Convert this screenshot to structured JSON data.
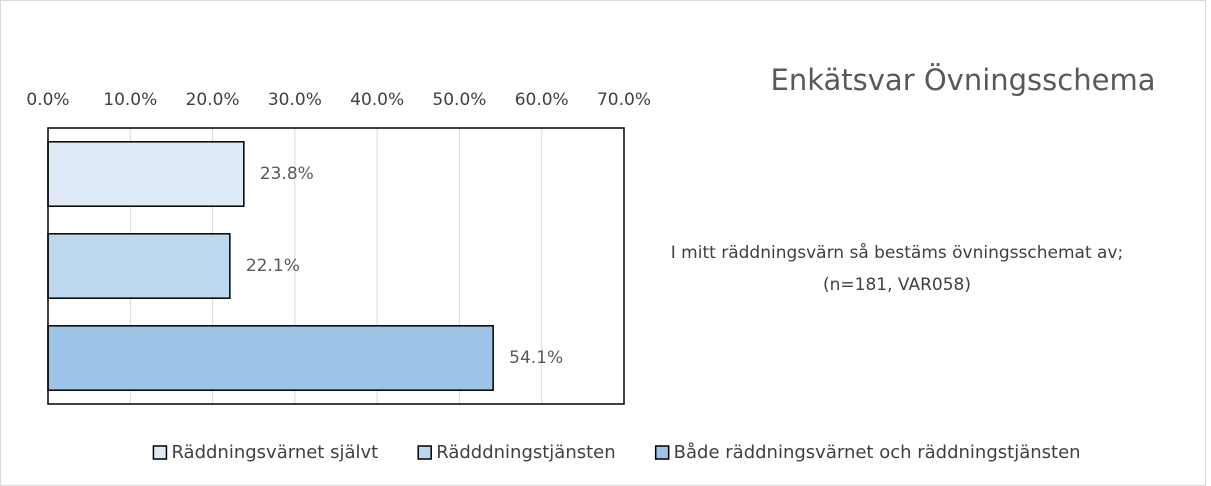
{
  "chart_data": {
    "type": "bar",
    "orientation": "horizontal",
    "title": "Enkätsvar Övningsschema",
    "annotations": [
      "I mitt räddningsvärn så bestäms övningsschemat av;",
      "(n=181, VAR058)"
    ],
    "series": [
      {
        "name": "Räddningsvärnet självt",
        "color": "#deebf7",
        "values": [
          23.8
        ],
        "value_labels": [
          "23.8%"
        ]
      },
      {
        "name": "Rädddningstjänsten",
        "color": "#bdd7ee",
        "values": [
          22.1
        ],
        "value_labels": [
          "22.1%"
        ]
      },
      {
        "name": "Både räddningsvärnet och räddningstjänsten",
        "color": "#9dc3e6",
        "values": [
          54.1
        ],
        "value_labels": [
          "54.1%"
        ]
      }
    ],
    "xlim": [
      0,
      70
    ],
    "xticks": [
      {
        "value": 0,
        "label": "0.0%"
      },
      {
        "value": 10,
        "label": "10.0%"
      },
      {
        "value": 20,
        "label": "20.0%"
      },
      {
        "value": 30,
        "label": "30.0%"
      },
      {
        "value": 40,
        "label": "40.0%"
      },
      {
        "value": 50,
        "label": "50.0%"
      },
      {
        "value": 60,
        "label": "60.0%"
      },
      {
        "value": 70,
        "label": "70.0%"
      }
    ],
    "grid": true,
    "legend": "bottom"
  }
}
